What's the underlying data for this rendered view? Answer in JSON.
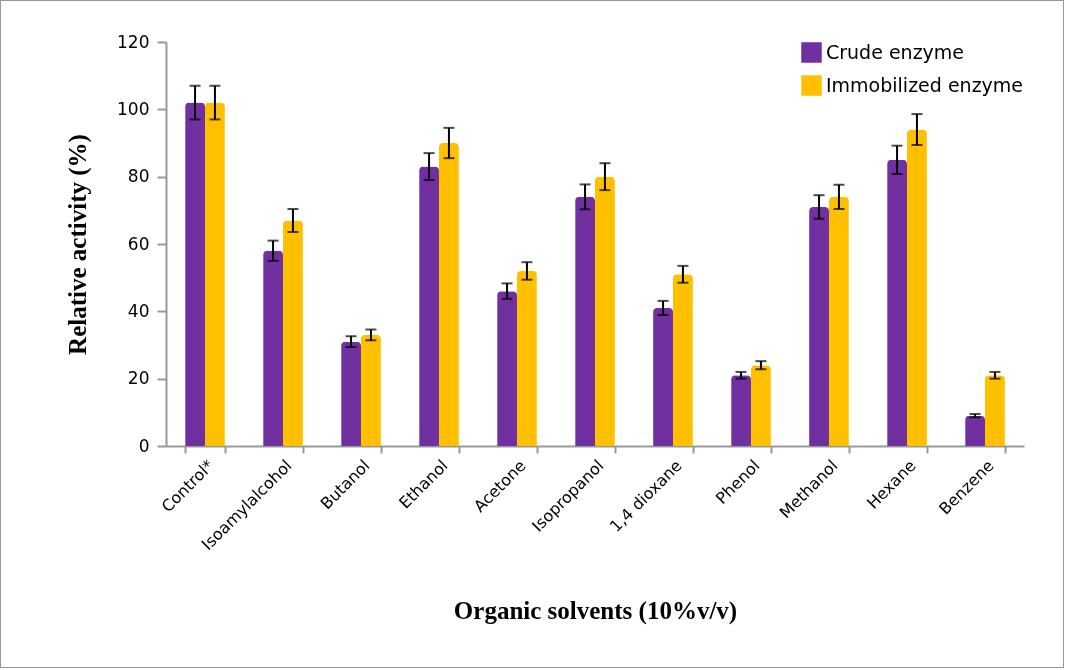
{
  "chart_data": {
    "type": "bar",
    "xlabel": "Organic solvents (10%v/v)",
    "ylabel": "Relative activity (%)",
    "categories": [
      "Control*",
      "Isoamylalcohol",
      "Butanol",
      "Ethanol",
      "Acetone",
      "Isopropanol",
      "1,4 dioxane",
      "Phenol",
      "Methanol",
      "Hexane",
      "Benzene"
    ],
    "series": [
      {
        "name": "Crude enzyme",
        "color": "#7030a0",
        "values": [
          102,
          58,
          31,
          83,
          46,
          74,
          41,
          21,
          71,
          85,
          9
        ],
        "errors": [
          5,
          3,
          1.6,
          4,
          2.3,
          3.7,
          2.1,
          1,
          3.5,
          4.2,
          0.5
        ]
      },
      {
        "name": "Immobilized enzyme",
        "color": "#ffc000",
        "values": [
          102,
          67,
          33,
          90,
          52,
          80,
          51,
          24,
          74,
          94,
          21
        ],
        "errors": [
          5,
          3.4,
          1.6,
          4.5,
          2.6,
          4,
          2.5,
          1.2,
          3.6,
          4.6,
          1
        ]
      }
    ],
    "ylim": [
      0,
      120
    ],
    "yticks": [
      0,
      20,
      40,
      60,
      80,
      100,
      120
    ],
    "legend": "top right"
  }
}
